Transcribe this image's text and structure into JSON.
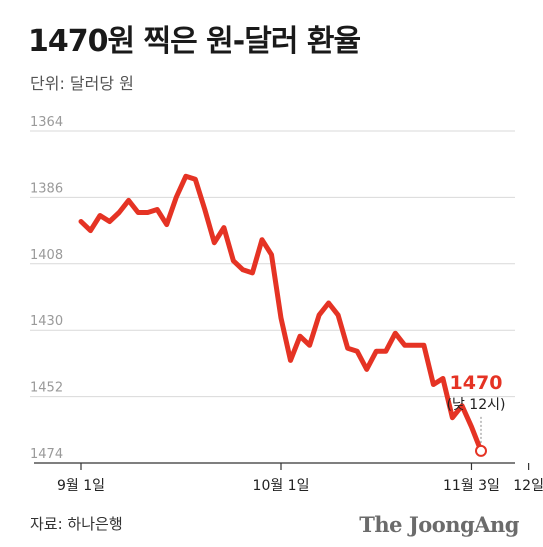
{
  "header": {
    "title": "1470원 찍은 원-달러 환율",
    "unit": "단위: 달러당 원"
  },
  "footer": {
    "source": "자료: 하나은행",
    "logo": "The JoongAng"
  },
  "annotation": {
    "value": "1470",
    "sub": "(낮 12시)"
  },
  "colors": {
    "line": "#e53324",
    "grid": "#d9d9d9",
    "axis": "#333333"
  },
  "chart_data": {
    "type": "line",
    "title": "1470원 찍은 원-달러 환율",
    "ylabel": "단위: 달러당 원",
    "y_inverted": true,
    "ylim": [
      1364,
      1474
    ],
    "y_ticks": [
      1364,
      1386,
      1408,
      1430,
      1452,
      1474
    ],
    "x_ticks": [
      {
        "index": 0,
        "label": "9월 1일"
      },
      {
        "index": 21,
        "label": "10월 1일"
      },
      {
        "index": 41,
        "label": "11월 3일"
      },
      {
        "index": 47,
        "label": "12일"
      }
    ],
    "grid": true,
    "series": [
      {
        "values": [
          1394,
          1397,
          1392,
          1394,
          1391,
          1387,
          1391,
          1391,
          1390,
          1395,
          1386,
          1379,
          1380,
          1390,
          1401,
          1396,
          1407,
          1410,
          1411,
          1400,
          1405,
          1426,
          1440,
          1432,
          1435,
          1425,
          1421,
          1425,
          1436,
          1437,
          1443,
          1437,
          1437,
          1431,
          1435,
          1435,
          1435,
          1448,
          1446,
          1459,
          1455,
          1462,
          1470
        ]
      }
    ]
  }
}
